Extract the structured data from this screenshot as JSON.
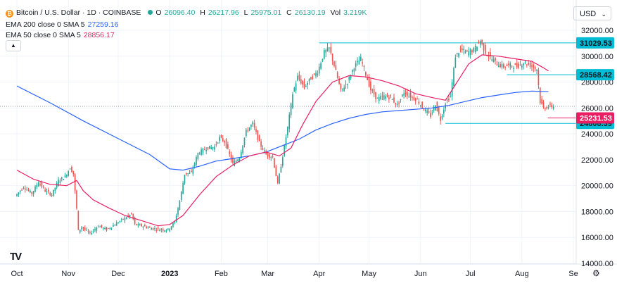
{
  "legend": {
    "symbol": "Bitcoin / U.S. Dollar · 1D · COINBASE",
    "o_label": "O",
    "o": "26096.40",
    "h_label": "H",
    "h": "26217.96",
    "l_label": "L",
    "l": "25975.01",
    "c_label": "C",
    "c": "26130.19",
    "vol_label": "Vol",
    "vol": "3.219K",
    "ema200_label": "EMA 200 close 0 SMA 5",
    "ema200_value": "27259.16",
    "ema50_label": "EMA 50 close 0 SMA 5",
    "ema50_value": "28856.17"
  },
  "currency": "USD",
  "colors": {
    "up": "#26a69a",
    "down": "#ef5350",
    "ema200": "#2962ff",
    "ema50": "#e91e63",
    "level_line": "#00bcd4",
    "price_tag": "#e91e63"
  },
  "chart_data": {
    "type": "candlestick",
    "ylim": [
      14000,
      33000
    ],
    "y_ticks": [
      "14000.00",
      "16000.00",
      "18000.00",
      "20000.00",
      "22000.00",
      "24000.00",
      "26000.00",
      "28000.00",
      "30000.00",
      "32000.00"
    ],
    "y_tick_values": [
      14000,
      16000,
      18000,
      20000,
      22000,
      24000,
      26000,
      28000,
      30000,
      32000
    ],
    "x_ticks": [
      "Oct",
      "Nov",
      "Dec",
      "2023",
      "Feb",
      "Mar",
      "Apr",
      "May",
      "Jun",
      "Jul",
      "Aug",
      "Se"
    ],
    "x_tick_days": [
      0,
      31,
      61,
      92,
      123,
      151,
      182,
      212,
      243,
      273,
      304,
      335
    ],
    "last_day": 323,
    "levels": [
      {
        "label": "31029.53",
        "value": 31029.53,
        "from_day": 182
      },
      {
        "label": "28568.42",
        "value": 28568.42,
        "from_day": 295
      },
      {
        "label": "24808.39",
        "value": 24808.39,
        "from_day": 258
      }
    ],
    "current_price": {
      "label": "25231.53",
      "value": 25231.53
    },
    "dotted_level": 26130,
    "price_path": [
      [
        0,
        19200
      ],
      [
        5,
        19900
      ],
      [
        10,
        19400
      ],
      [
        14,
        20300
      ],
      [
        18,
        19600
      ],
      [
        22,
        19300
      ],
      [
        26,
        20400
      ],
      [
        30,
        20700
      ],
      [
        33,
        21400
      ],
      [
        35,
        20900
      ],
      [
        37,
        18200
      ],
      [
        38,
        16500
      ],
      [
        40,
        16800
      ],
      [
        45,
        16300
      ],
      [
        50,
        16900
      ],
      [
        55,
        16600
      ],
      [
        61,
        17100
      ],
      [
        66,
        17500
      ],
      [
        70,
        17800
      ],
      [
        72,
        17000
      ],
      [
        76,
        16900
      ],
      [
        82,
        16700
      ],
      [
        88,
        16600
      ],
      [
        92,
        16600
      ],
      [
        96,
        17200
      ],
      [
        99,
        18800
      ],
      [
        102,
        20900
      ],
      [
        106,
        21000
      ],
      [
        110,
        22500
      ],
      [
        115,
        22900
      ],
      [
        120,
        23000
      ],
      [
        123,
        23700
      ],
      [
        126,
        23400
      ],
      [
        131,
        21700
      ],
      [
        135,
        22200
      ],
      [
        139,
        24200
      ],
      [
        143,
        24800
      ],
      [
        147,
        23300
      ],
      [
        151,
        22400
      ],
      [
        155,
        22200
      ],
      [
        158,
        20100
      ],
      [
        161,
        22300
      ],
      [
        164,
        24500
      ],
      [
        167,
        27100
      ],
      [
        170,
        28400
      ],
      [
        174,
        27600
      ],
      [
        178,
        28300
      ],
      [
        182,
        28800
      ],
      [
        186,
        30300
      ],
      [
        189,
        30600
      ],
      [
        192,
        29300
      ],
      [
        196,
        27300
      ],
      [
        200,
        28000
      ],
      [
        204,
        29200
      ],
      [
        208,
        29800
      ],
      [
        211,
        28600
      ],
      [
        214,
        27400
      ],
      [
        218,
        26700
      ],
      [
        222,
        26900
      ],
      [
        226,
        26800
      ],
      [
        230,
        26200
      ],
      [
        234,
        27200
      ],
      [
        238,
        26900
      ],
      [
        242,
        26600
      ],
      [
        246,
        25900
      ],
      [
        250,
        25400
      ],
      [
        253,
        26300
      ],
      [
        256,
        25100
      ],
      [
        259,
        26400
      ],
      [
        262,
        26900
      ],
      [
        265,
        30000
      ],
      [
        268,
        30500
      ],
      [
        272,
        30300
      ],
      [
        276,
        30500
      ],
      [
        280,
        31200
      ],
      [
        283,
        30300
      ],
      [
        286,
        29900
      ],
      [
        290,
        29400
      ],
      [
        294,
        29200
      ],
      [
        298,
        29300
      ],
      [
        302,
        29200
      ],
      [
        306,
        29500
      ],
      [
        310,
        29300
      ],
      [
        314,
        29000
      ],
      [
        316,
        26500
      ],
      [
        318,
        26000
      ],
      [
        321,
        26100
      ],
      [
        323,
        26130
      ]
    ],
    "ema50_path": [
      [
        0,
        21200
      ],
      [
        10,
        20500
      ],
      [
        20,
        20100
      ],
      [
        30,
        20000
      ],
      [
        36,
        20400
      ],
      [
        40,
        19600
      ],
      [
        46,
        18900
      ],
      [
        55,
        18300
      ],
      [
        65,
        17700
      ],
      [
        75,
        17300
      ],
      [
        85,
        16900
      ],
      [
        92,
        17000
      ],
      [
        100,
        17700
      ],
      [
        110,
        19300
      ],
      [
        120,
        20700
      ],
      [
        130,
        21600
      ],
      [
        140,
        22300
      ],
      [
        150,
        22600
      ],
      [
        158,
        22300
      ],
      [
        165,
        22900
      ],
      [
        172,
        24700
      ],
      [
        180,
        26500
      ],
      [
        190,
        28000
      ],
      [
        200,
        28500
      ],
      [
        210,
        28400
      ],
      [
        220,
        28100
      ],
      [
        230,
        27700
      ],
      [
        240,
        27100
      ],
      [
        250,
        26800
      ],
      [
        258,
        26600
      ],
      [
        265,
        28000
      ],
      [
        272,
        29400
      ],
      [
        280,
        30100
      ],
      [
        290,
        30000
      ],
      [
        300,
        29800
      ],
      [
        310,
        29600
      ],
      [
        317,
        29100
      ],
      [
        320,
        28860
      ]
    ],
    "ema200_path": [
      [
        0,
        27700
      ],
      [
        20,
        26400
      ],
      [
        40,
        25000
      ],
      [
        60,
        23700
      ],
      [
        80,
        22400
      ],
      [
        92,
        21300
      ],
      [
        100,
        21200
      ],
      [
        110,
        21500
      ],
      [
        120,
        21900
      ],
      [
        130,
        22100
      ],
      [
        140,
        22300
      ],
      [
        150,
        22600
      ],
      [
        160,
        23100
      ],
      [
        170,
        23600
      ],
      [
        180,
        24300
      ],
      [
        190,
        24800
      ],
      [
        200,
        25200
      ],
      [
        210,
        25500
      ],
      [
        220,
        25700
      ],
      [
        230,
        25800
      ],
      [
        240,
        25900
      ],
      [
        250,
        26000
      ],
      [
        260,
        26200
      ],
      [
        270,
        26500
      ],
      [
        280,
        26800
      ],
      [
        290,
        27000
      ],
      [
        300,
        27200
      ],
      [
        310,
        27300
      ],
      [
        320,
        27260
      ]
    ]
  }
}
